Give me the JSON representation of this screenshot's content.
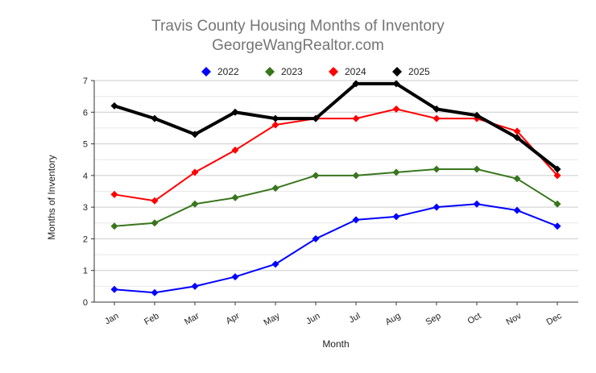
{
  "chart_data": {
    "type": "line",
    "title": "Travis County Housing Months of Inventory",
    "subtitle": "GeorgeWangRealtor.com",
    "xlabel": "Month",
    "ylabel": "Months of Inventory",
    "categories": [
      "Jan",
      "Feb",
      "Mar",
      "Apr",
      "May",
      "Jun",
      "Jul",
      "Aug",
      "Sep",
      "Oct",
      "Nov",
      "Dec"
    ],
    "ylim": [
      0,
      7
    ],
    "yticks": [
      "0",
      "1",
      "2",
      "3",
      "4",
      "5",
      "6",
      "7"
    ],
    "grid": true,
    "legend": "top",
    "series": [
      {
        "name": "2022",
        "color": "#0000ff",
        "values": [
          0.4,
          0.3,
          0.5,
          0.8,
          1.2,
          2.0,
          2.6,
          2.7,
          3.0,
          3.1,
          2.9,
          2.4
        ]
      },
      {
        "name": "2023",
        "color": "#38761d",
        "values": [
          2.4,
          2.5,
          3.1,
          3.3,
          3.6,
          4.0,
          4.0,
          4.1,
          4.2,
          4.2,
          3.9,
          3.1
        ]
      },
      {
        "name": "2024",
        "color": "#ff0000",
        "values": [
          3.4,
          3.2,
          4.1,
          4.8,
          5.6,
          5.8,
          5.8,
          6.1,
          5.8,
          5.8,
          5.4,
          4.0
        ]
      },
      {
        "name": "2025",
        "color": "#000000",
        "values": [
          6.2,
          5.8,
          5.3,
          6.0,
          5.8,
          5.8,
          6.9,
          6.9,
          6.1,
          5.9,
          5.2,
          4.2
        ]
      }
    ]
  }
}
